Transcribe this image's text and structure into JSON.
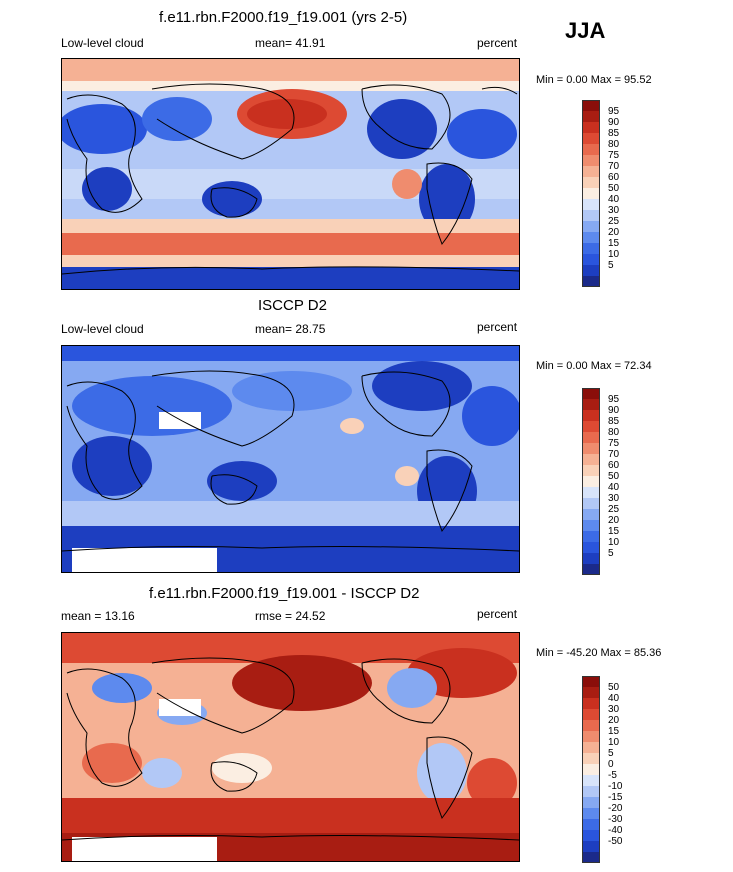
{
  "season": "JJA",
  "colors": {
    "main_scale": [
      "#1b2a8a",
      "#1d3ec0",
      "#2a55dd",
      "#3c6be6",
      "#5d8aee",
      "#86a9f2",
      "#b2c8f6",
      "#d8e4fa",
      "#fbeee2",
      "#f9d1b8",
      "#f5b194",
      "#ef8c6e",
      "#e86a4e",
      "#dd4a33",
      "#c9301f",
      "#a81d12",
      "#8a0e0a"
    ],
    "diff_scale": [
      "#1b2a8a",
      "#1d3ec0",
      "#2a55dd",
      "#3c6be6",
      "#5d8aee",
      "#86a9f2",
      "#b2c8f6",
      "#d8e4fa",
      "#fbeee2",
      "#f9d1b8",
      "#f5b194",
      "#ef8c6e",
      "#e86a4e",
      "#dd4a33",
      "#c9301f",
      "#a81d12",
      "#8a0e0a"
    ]
  },
  "panels": [
    {
      "title": "f.e11.rbn.F2000.f19_f19.001 (yrs 2-5)",
      "left_label": "Low-level cloud",
      "center_label": "mean=  41.91",
      "right_label": "percent",
      "minmax": "Min =   0.00 Max =  95.52",
      "colorbar_labels": [
        "95",
        "90",
        "85",
        "80",
        "75",
        "70",
        "60",
        "50",
        "40",
        "30",
        "25",
        "20",
        "15",
        "10",
        "5"
      ]
    },
    {
      "title": "ISCCP D2",
      "left_label": "Low-level cloud",
      "center_label": "mean=  28.75",
      "right_label": "percent",
      "minmax": "Min =   0.00 Max =  72.34",
      "colorbar_labels": [
        "95",
        "90",
        "85",
        "80",
        "75",
        "70",
        "60",
        "50",
        "40",
        "30",
        "25",
        "20",
        "15",
        "10",
        "5"
      ]
    },
    {
      "title": "f.e11.rbn.F2000.f19_f19.001 - ISCCP D2",
      "left_label": "mean =  13.16",
      "center_label": "rmse =  24.52",
      "right_label": "percent",
      "minmax": "Min = -45.20 Max =  85.36",
      "colorbar_labels": [
        "50",
        "40",
        "30",
        "20",
        "15",
        "10",
        "5",
        "0",
        "-5",
        "-10",
        "-15",
        "-20",
        "-30",
        "-40",
        "-50"
      ]
    }
  ]
}
